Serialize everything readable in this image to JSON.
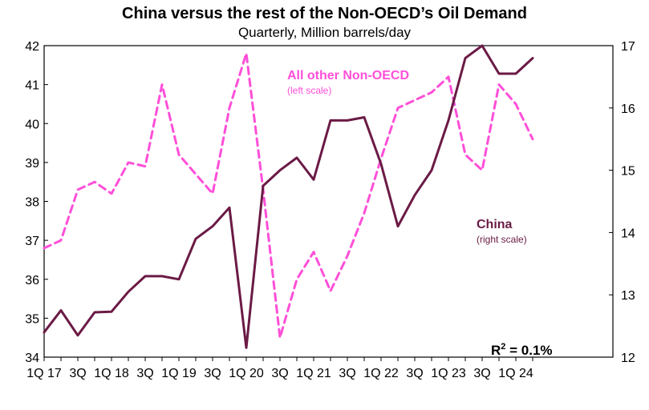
{
  "chart_data": {
    "type": "line",
    "title": "China versus the rest of the Non-OECD’s Oil Demand",
    "subtitle": "Quarterly,  Million barrels/day",
    "x_tick_labels": [
      "1Q 17",
      "3Q",
      "1Q 18",
      "3Q",
      "1Q 19",
      "3Q",
      "1Q 20",
      "3Q",
      "1Q 21",
      "3Q",
      "1Q 22",
      "3Q",
      "1Q 23",
      "3Q",
      "1Q 24"
    ],
    "x": [
      "1Q 17",
      "2Q 17",
      "3Q 17",
      "4Q 17",
      "1Q 18",
      "2Q 18",
      "3Q 18",
      "4Q 18",
      "1Q 19",
      "2Q 19",
      "3Q 19",
      "4Q 19",
      "1Q 20",
      "2Q 20",
      "3Q 20",
      "4Q 20",
      "1Q 21",
      "2Q 21",
      "3Q 21",
      "4Q 21",
      "1Q 22",
      "2Q 22",
      "3Q 22",
      "4Q 22",
      "1Q 23",
      "2Q 23",
      "3Q 23",
      "4Q 23",
      "1Q 24",
      "2Q 24"
    ],
    "y_left": {
      "range": [
        34,
        42
      ],
      "ticks": [
        34,
        35,
        36,
        37,
        38,
        39,
        40,
        41,
        42
      ]
    },
    "y_right": {
      "range": [
        12,
        17
      ],
      "ticks": [
        12,
        13,
        14,
        15,
        16,
        17
      ]
    },
    "series": [
      {
        "name": "All other Non-OECD",
        "axis_note": "(left scale)",
        "axis": "left",
        "style": "dashed",
        "color": "#ff4fd8",
        "values": [
          36.8,
          37.0,
          38.3,
          38.5,
          38.2,
          39.0,
          38.9,
          41.0,
          39.2,
          38.7,
          38.2,
          40.4,
          41.8,
          38.3,
          34.5,
          36.0,
          36.7,
          35.7,
          36.6,
          37.7,
          39.1,
          40.4,
          40.6,
          40.8,
          41.2,
          39.2,
          38.8,
          41.0,
          40.5,
          39.6
        ]
      },
      {
        "name": "China",
        "axis_note": "(right scale)",
        "axis": "right",
        "style": "solid",
        "color": "#6b1a45",
        "values": [
          12.4,
          12.75,
          12.35,
          12.72,
          12.73,
          13.05,
          13.3,
          13.3,
          13.25,
          13.9,
          14.1,
          14.4,
          12.15,
          14.75,
          15.0,
          15.2,
          14.85,
          15.8,
          15.8,
          15.85,
          15.1,
          14.1,
          14.6,
          15.0,
          15.8,
          16.8,
          17.0,
          16.55,
          16.55,
          16.8
        ]
      }
    ],
    "annotation": {
      "r2_prefix": "R",
      "r2_sup": "2",
      "r2_value": " = 0.1%"
    },
    "grid": false,
    "legend": "inline labels"
  }
}
